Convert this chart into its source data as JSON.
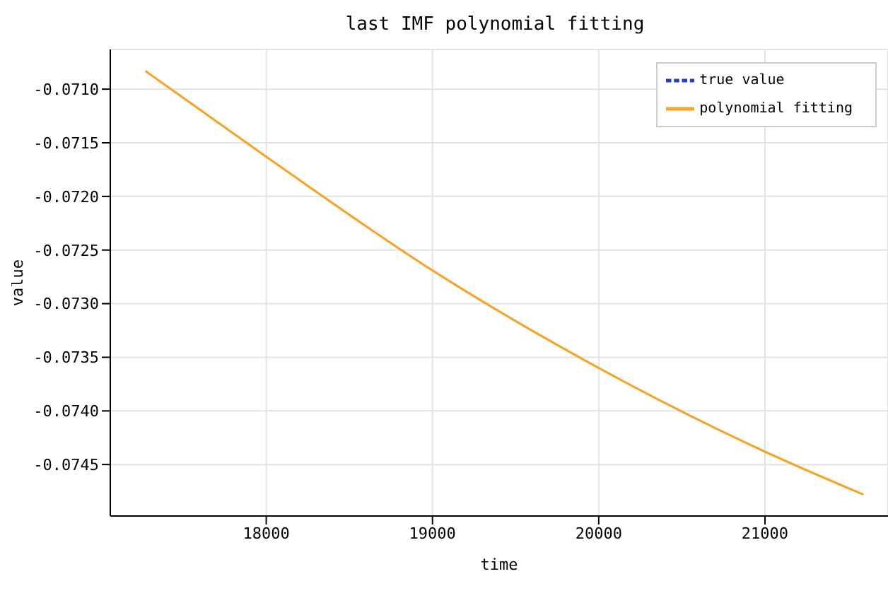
{
  "chart_data": {
    "type": "line",
    "title": "last IMF polynomial fitting",
    "xlabel": "time",
    "ylabel": "value",
    "x": [
      17273,
      18000,
      19000,
      20000,
      21000,
      21592
    ],
    "series": [
      {
        "name": "true value",
        "color": "#2b3fb5",
        "line_style": "dashed",
        "values": [
          null,
          null,
          null,
          null,
          null,
          null
        ]
      },
      {
        "name": "polynomial fitting",
        "color": "#f5a42c",
        "line_style": "solid",
        "values": [
          -0.07083,
          -0.07163,
          -0.07269,
          -0.0736,
          -0.07438,
          -0.07478
        ]
      }
    ],
    "xlim": [
      17062,
      21740
    ],
    "xticks": [
      18000,
      19000,
      20000,
      21000
    ],
    "ylim": [
      -0.07498,
      -0.07063
    ],
    "yticks": [
      {
        "value": -0.071,
        "label": "-0.0710"
      },
      {
        "value": -0.0715,
        "label": "-0.0715"
      },
      {
        "value": -0.072,
        "label": "-0.0720"
      },
      {
        "value": -0.0725,
        "label": "-0.0725"
      },
      {
        "value": -0.073,
        "label": "-0.0730"
      },
      {
        "value": -0.0735,
        "label": "-0.0735"
      },
      {
        "value": -0.074,
        "label": "-0.0740"
      },
      {
        "value": -0.0745,
        "label": "-0.0745"
      }
    ],
    "grid": true,
    "legend": "top right",
    "marker": "none"
  }
}
